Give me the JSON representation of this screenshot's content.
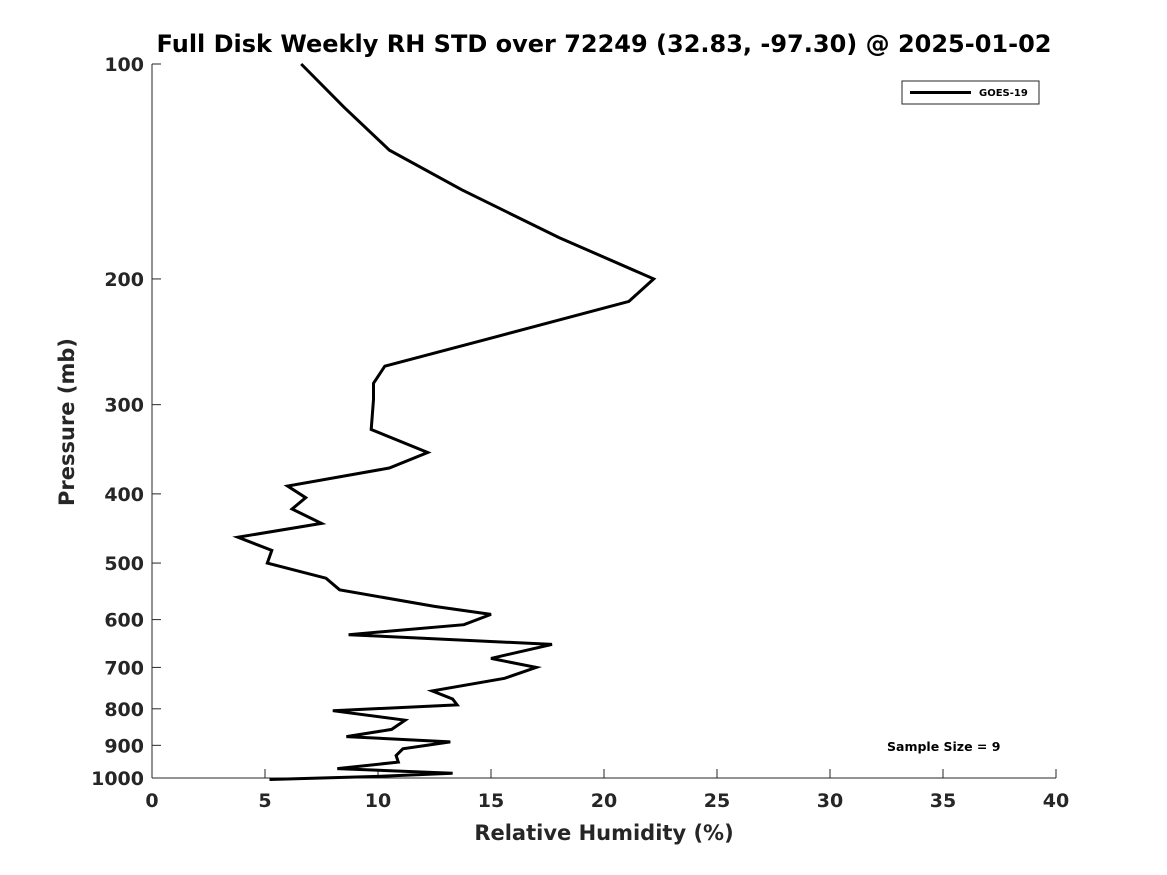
{
  "chart_data": {
    "type": "line",
    "title": "Full Disk Weekly RH STD over 72249 (32.83, -97.30) @ 2025-01-02",
    "xlabel": "Relative Humidity (%)",
    "ylabel": "Pressure (mb)",
    "xlim": [
      0,
      40
    ],
    "ylim": [
      100,
      1000
    ],
    "y_scale": "log",
    "y_reversed": true,
    "grid": false,
    "x_ticks": [
      0,
      5,
      10,
      15,
      20,
      25,
      30,
      35,
      40
    ],
    "y_ticks": [
      100,
      200,
      300,
      400,
      500,
      600,
      700,
      800,
      900,
      1000
    ],
    "legend": {
      "position": "top-right",
      "entries": [
        "GOES-19"
      ]
    },
    "annotation": "Sample Size = 9",
    "series": [
      {
        "name": "GOES-19",
        "color": "#000000",
        "rh": [
          6.6,
          8.5,
          10.5,
          13.7,
          18.0,
          22.2,
          21.1,
          14.8,
          10.3,
          9.8,
          9.8,
          9.7,
          12.2,
          10.5,
          6.0,
          6.8,
          6.2,
          7.5,
          3.8,
          5.3,
          5.1,
          7.7,
          8.3,
          12.5,
          15.0,
          13.8,
          8.7,
          17.7,
          15.0,
          17.0,
          15.6,
          12.4,
          13.3,
          13.5,
          8.0,
          11.2,
          10.6,
          8.6,
          13.2,
          11.1,
          10.8,
          10.9,
          8.2,
          13.3,
          10.0,
          5.2
        ],
        "pressure": [
          100,
          115,
          132,
          150,
          175,
          200,
          215,
          243,
          265,
          280,
          295,
          325,
          350,
          368,
          390,
          405,
          420,
          440,
          460,
          480,
          500,
          525,
          545,
          575,
          590,
          610,
          630,
          650,
          680,
          700,
          725,
          755,
          775,
          790,
          805,
          830,
          855,
          875,
          890,
          910,
          930,
          950,
          970,
          985,
          995,
          1005
        ]
      }
    ]
  }
}
